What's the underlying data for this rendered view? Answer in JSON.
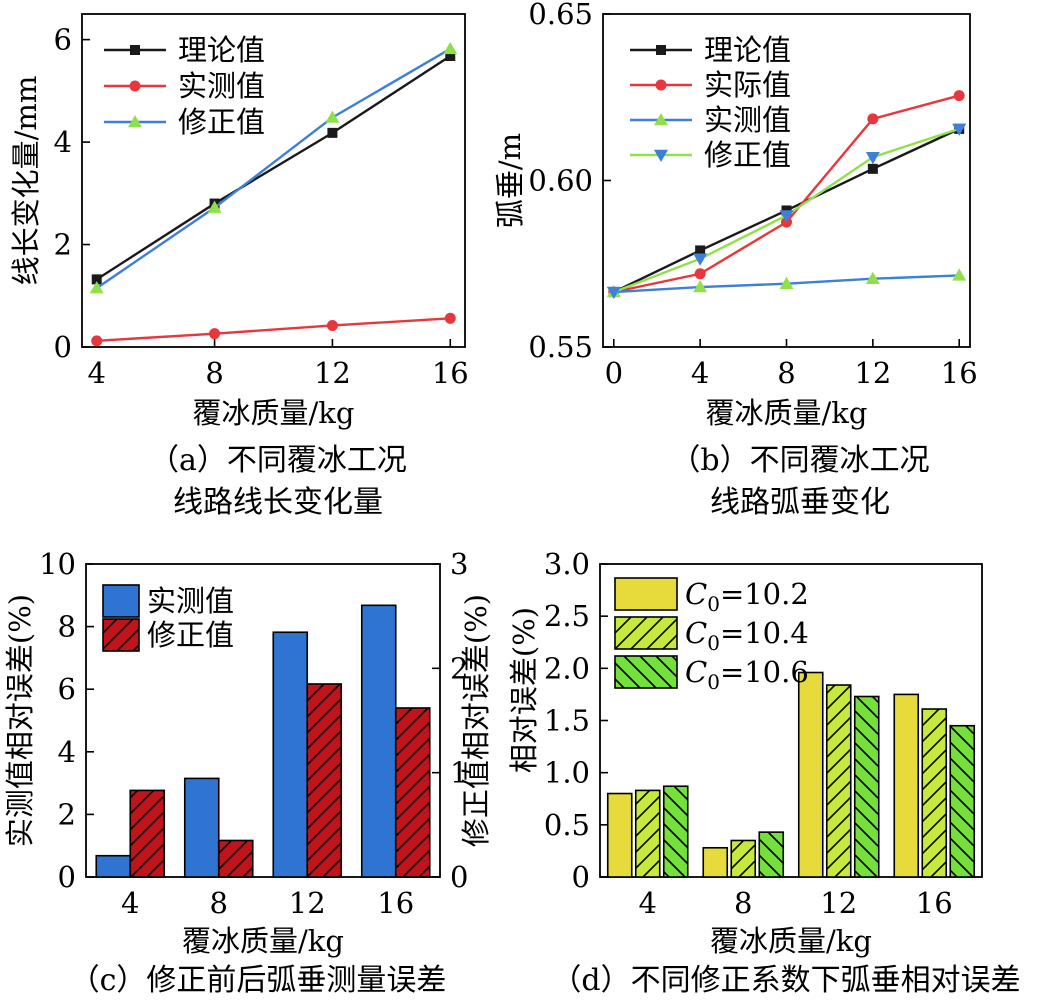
{
  "captions": {
    "a1": "（a）不同覆冰工况",
    "a2": "线路线长变化量",
    "b1": "（b）不同覆冰工况",
    "b2": "线路弧垂变化",
    "c": "（c）修正前后弧垂测量误差",
    "d": "（d）不同修正系数下弧垂相对误差"
  },
  "colors": {
    "black": "#1a1a1a",
    "red": "#e8373c",
    "blue": "#3d7fd9",
    "green": "#8fe04a",
    "bar_blue": "#2f74d0",
    "bar_red": "#c0141a",
    "yellow": "#e6db3a",
    "lime": "#c6ea3c",
    "green_bar": "#74e03a"
  },
  "chart_data": [
    {
      "id": "a",
      "type": "line",
      "xlabel": "覆冰质量/kg",
      "ylabel": "线长变化量/mm",
      "x": [
        4,
        8,
        12,
        16
      ],
      "xlim": [
        3.5,
        16.5
      ],
      "ylim": [
        0,
        6.5
      ],
      "xticks": [
        "4",
        "8",
        "12",
        "16"
      ],
      "yticks": [
        0,
        2,
        4,
        6
      ],
      "ytick_labels": [
        "0",
        "2",
        "4",
        "6"
      ],
      "legend_position": "top-left",
      "series": [
        {
          "name": "理论值",
          "color": "#1a1a1a",
          "marker": "square",
          "values": [
            1.32,
            2.8,
            4.18,
            5.68
          ]
        },
        {
          "name": "实测值",
          "color": "#e8373c",
          "marker": "circle",
          "values": [
            0.12,
            0.26,
            0.42,
            0.56
          ]
        },
        {
          "name": "修正值",
          "color": "#3d7fd9",
          "marker": "triangle-up",
          "marker_color": "#8fe04a",
          "values": [
            1.15,
            2.72,
            4.48,
            5.82
          ]
        }
      ]
    },
    {
      "id": "b",
      "type": "line",
      "xlabel": "覆冰质量/kg",
      "ylabel": "弧垂/m",
      "x": [
        0,
        4,
        8,
        12,
        16
      ],
      "xlim": [
        -0.5,
        16.5
      ],
      "ylim": [
        0.55,
        0.65
      ],
      "xticks": [
        "0",
        "4",
        "8",
        "12",
        "16"
      ],
      "yticks": [
        0.55,
        0.6,
        0.65
      ],
      "ytick_labels": [
        "0.55",
        "0.60",
        "0.65"
      ],
      "legend_position": "top-left",
      "series": [
        {
          "name": "理论值",
          "color": "#1a1a1a",
          "marker": "square",
          "values": [
            0.5665,
            0.579,
            0.591,
            0.6035,
            0.6155
          ]
        },
        {
          "name": "实际值",
          "color": "#e8373c",
          "marker": "circle",
          "values": [
            0.5665,
            0.572,
            0.5875,
            0.6185,
            0.6255
          ]
        },
        {
          "name": "实测值",
          "color": "#3d7fd9",
          "marker": "triangle-up",
          "marker_color": "#8fe04a",
          "values": [
            0.5665,
            0.568,
            0.569,
            0.5705,
            0.5715
          ]
        },
        {
          "name": "修正值",
          "color": "#8fe04a",
          "marker": "triangle-down",
          "marker_color": "#3d7fd9",
          "values": [
            0.5665,
            0.5765,
            0.5895,
            0.607,
            0.6155
          ]
        }
      ]
    },
    {
      "id": "c",
      "type": "bar",
      "xlabel": "覆冰质量/kg",
      "ylabel": "实测值相对误差(%)",
      "ylabel_right": "修正值相对误差(%)",
      "categories": [
        "4",
        "8",
        "12",
        "16"
      ],
      "ylim": [
        0,
        10
      ],
      "ylim_right": [
        0,
        3
      ],
      "yticks": [
        0,
        2,
        4,
        6,
        8,
        10
      ],
      "yticks_right": [
        0,
        1,
        2,
        3
      ],
      "legend_position": "top-left",
      "series": [
        {
          "name": "实测值",
          "axis": "left",
          "color": "#2f74d0",
          "hatch": "none",
          "values": [
            0.68,
            3.15,
            7.82,
            8.68
          ]
        },
        {
          "name": "修正值",
          "axis": "right",
          "color": "#c0141a",
          "hatch": "forward",
          "values": [
            0.83,
            0.35,
            1.85,
            1.62
          ]
        }
      ]
    },
    {
      "id": "d",
      "type": "bar",
      "xlabel": "覆冰质量/kg",
      "ylabel": "相对误差(%)",
      "categories": [
        "4",
        "8",
        "12",
        "16"
      ],
      "ylim": [
        0,
        3.0
      ],
      "yticks": [
        0,
        0.5,
        1.0,
        1.5,
        2.0,
        2.5,
        3.0
      ],
      "ytick_labels": [
        "0",
        "0.5",
        "1.0",
        "1.5",
        "2.0",
        "2.5",
        "3.0"
      ],
      "legend_position": "top-left",
      "series": [
        {
          "name_prefix": "C",
          "name_sub": "0",
          "name_suffix": "=10.2",
          "color": "#e6db3a",
          "hatch": "none",
          "values": [
            0.8,
            0.28,
            1.96,
            1.75
          ]
        },
        {
          "name_prefix": "C",
          "name_sub": "0",
          "name_suffix": "=10.4",
          "color": "#c6ea3c",
          "hatch": "forward",
          "values": [
            0.83,
            0.35,
            1.84,
            1.61
          ]
        },
        {
          "name_prefix": "C",
          "name_sub": "0",
          "name_suffix": "=10.6",
          "color": "#74e03a",
          "hatch": "back",
          "values": [
            0.87,
            0.43,
            1.73,
            1.45
          ]
        }
      ]
    }
  ]
}
